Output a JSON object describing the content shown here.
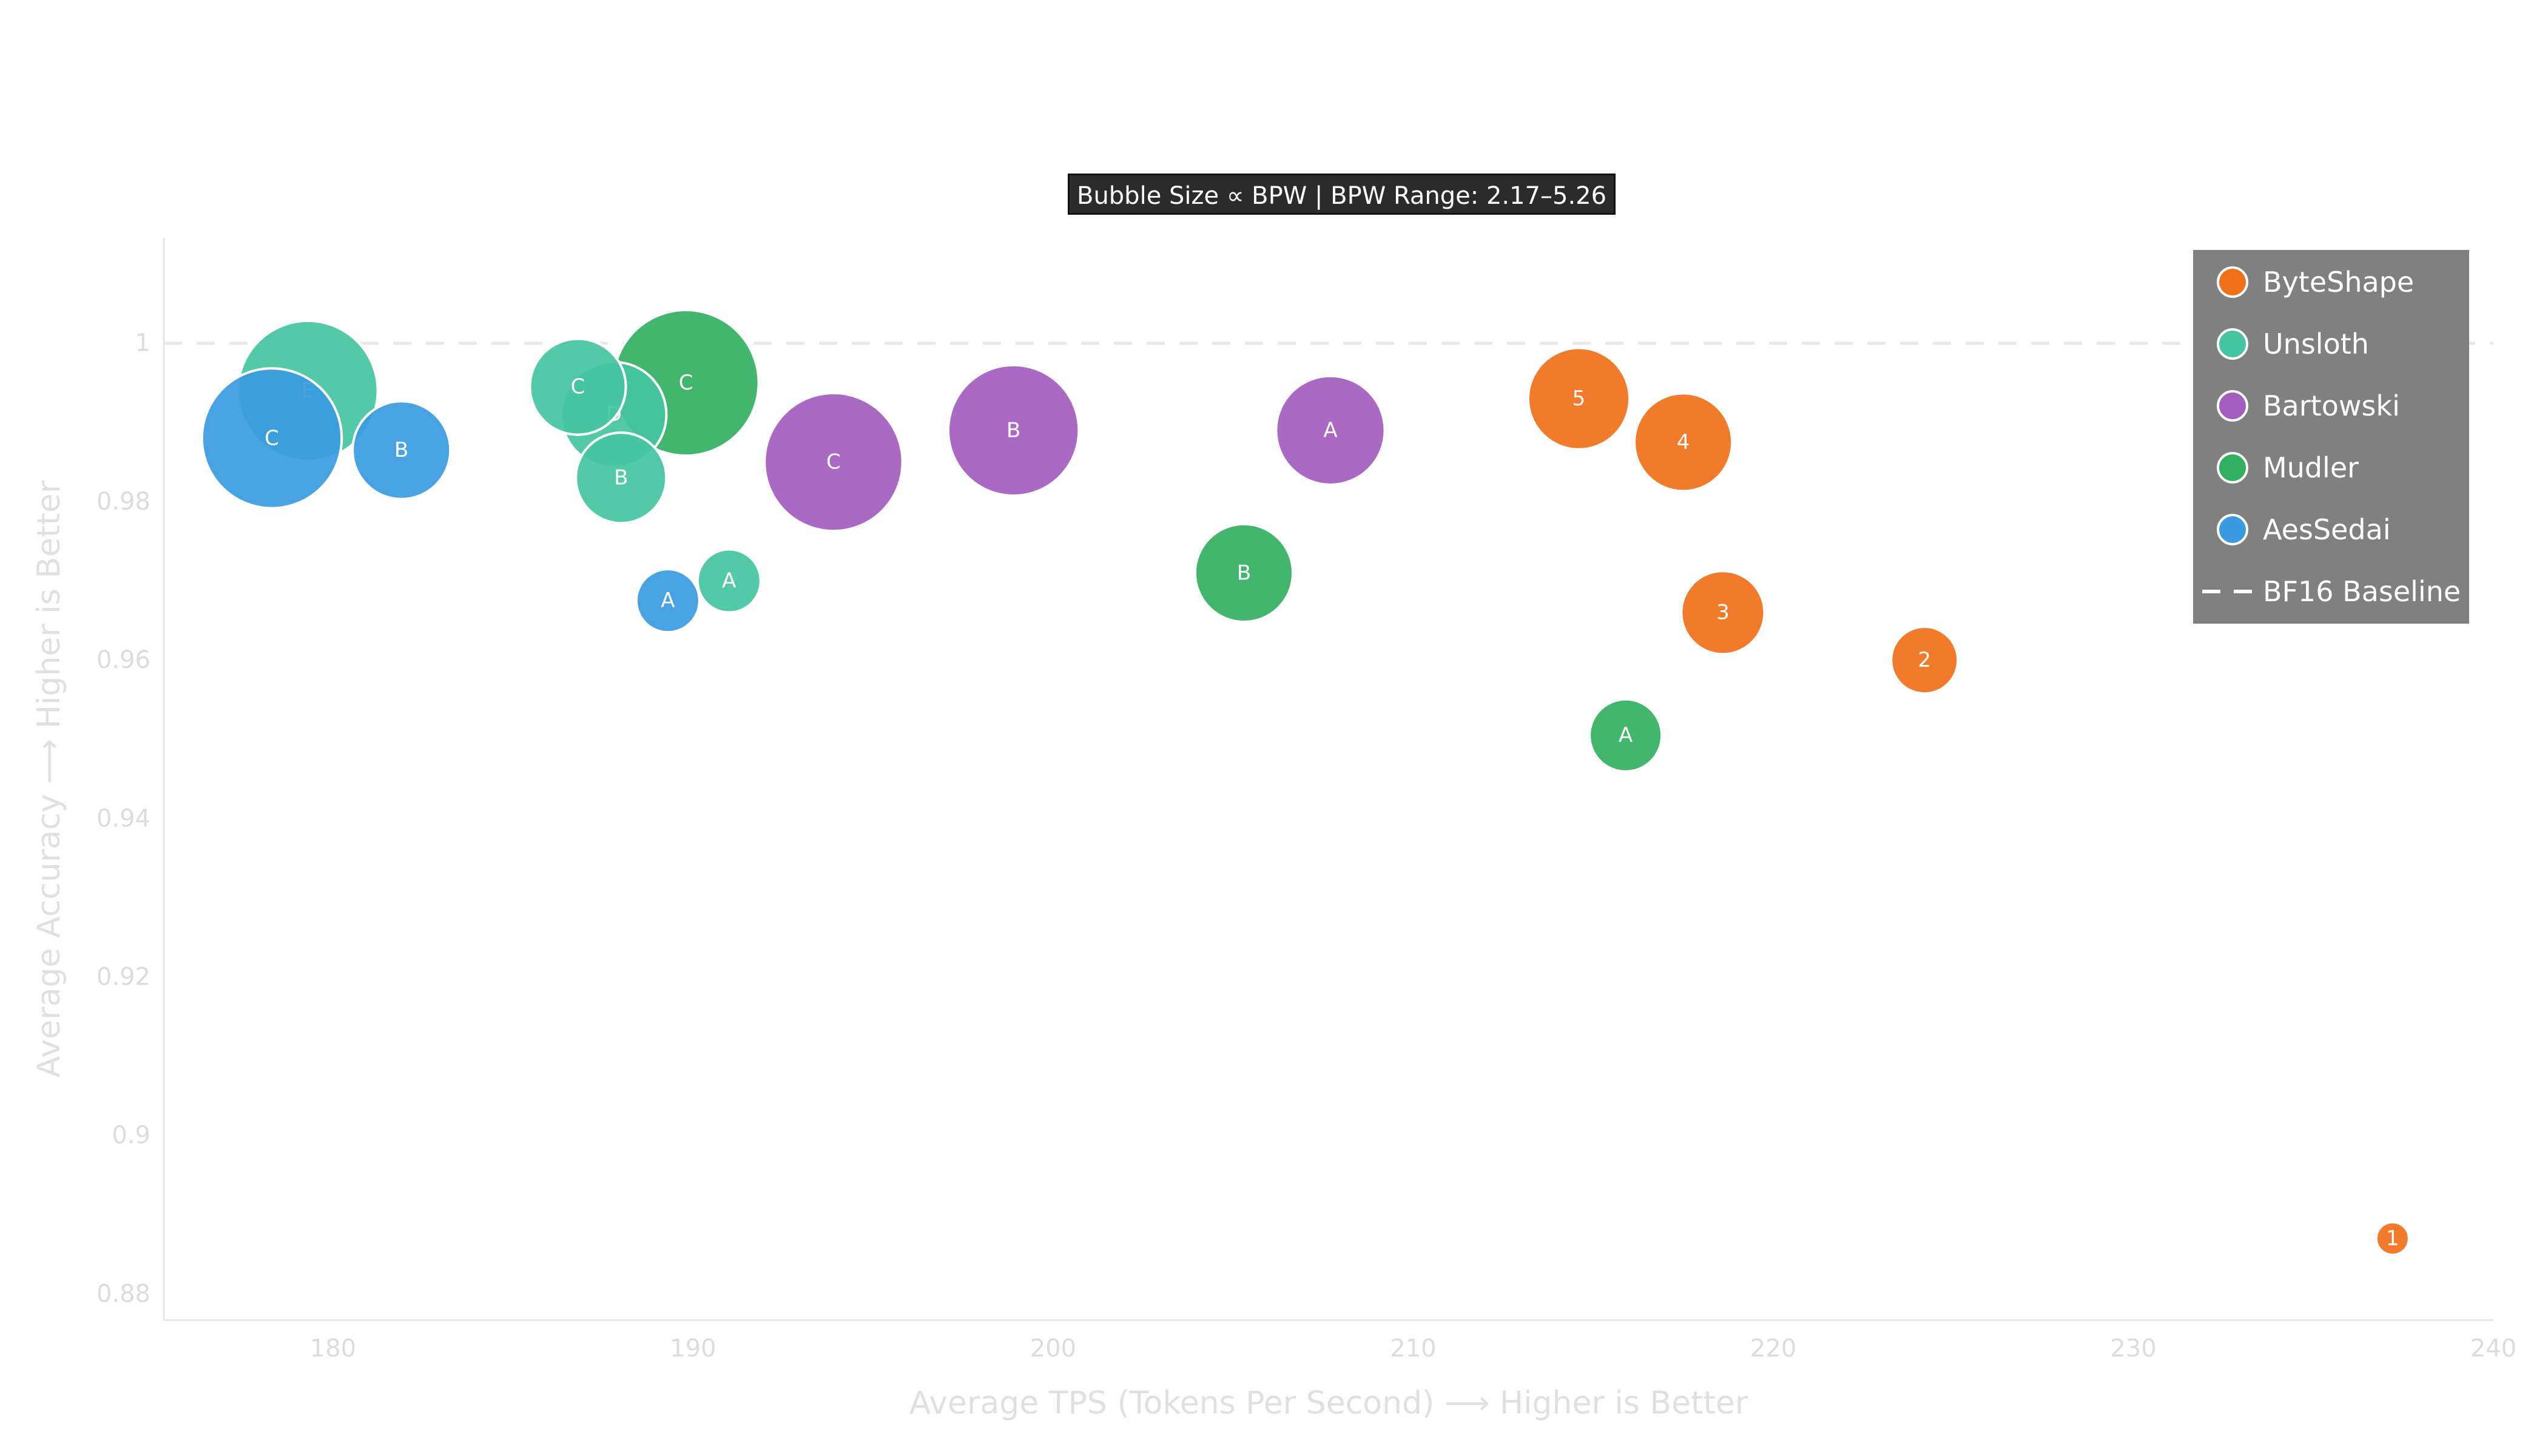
{
  "info_box": "Bubble Size ∝ BPW | BPW Range: 2.17–5.26",
  "chart_data": {
    "type": "scatter",
    "subtype": "bubble",
    "title": "",
    "xlabel": "Average TPS (Tokens Per Second) ⟶ Higher is Better",
    "ylabel": "Average Accuracy ⟶ Higher is Better",
    "xlim": [
      175.3,
      240
    ],
    "ylim": [
      0.8767,
      1.0133
    ],
    "xticks": [
      180,
      190,
      200,
      210,
      220,
      230,
      240
    ],
    "yticks": [
      0.88,
      0.9,
      0.92,
      0.94,
      0.96,
      0.98,
      1
    ],
    "ytick_labels": [
      "0.88",
      "0.9",
      "0.92",
      "0.94",
      "0.96",
      "0.98",
      "1"
    ],
    "grid": false,
    "legend_position": "top-right",
    "baseline": {
      "name": "BF16 Baseline",
      "y": 1,
      "color": "#e8e8e8"
    },
    "series": [
      {
        "name": "ByteShape",
        "color": "#f07019",
        "points": [
          {
            "label": "1",
            "x": 237.2,
            "y": 0.887,
            "bpw": 2.17
          },
          {
            "label": "2",
            "x": 224.2,
            "y": 0.96,
            "bpw": 3.1
          },
          {
            "label": "3",
            "x": 218.6,
            "y": 0.966,
            "bpw": 3.55
          },
          {
            "label": "4",
            "x": 217.5,
            "y": 0.9875,
            "bpw": 3.95
          },
          {
            "label": "5",
            "x": 214.6,
            "y": 0.993,
            "bpw": 4.05
          }
        ]
      },
      {
        "name": "Unsloth",
        "color": "#45c4a0",
        "points": [
          {
            "label": "A",
            "x": 191.0,
            "y": 0.97,
            "bpw": 3.0
          },
          {
            "label": "B",
            "x": 188.0,
            "y": 0.983,
            "bpw": 3.75
          },
          {
            "label": "C",
            "x": 186.8,
            "y": 0.9945,
            "bpw": 3.9
          },
          {
            "label": "D",
            "x": 187.8,
            "y": 0.991,
            "bpw": 4.15
          },
          {
            "label": "E",
            "x": 179.3,
            "y": 0.994,
            "bpw": 5.1
          }
        ]
      },
      {
        "name": "Bartowski",
        "color": "#a35dbf",
        "points": [
          {
            "label": "A",
            "x": 207.7,
            "y": 0.989,
            "bpw": 4.25
          },
          {
            "label": "B",
            "x": 198.9,
            "y": 0.989,
            "bpw": 4.85
          },
          {
            "label": "C",
            "x": 193.9,
            "y": 0.985,
            "bpw": 5.05
          }
        ]
      },
      {
        "name": "Mudler",
        "color": "#32b060",
        "points": [
          {
            "label": "A",
            "x": 215.9,
            "y": 0.9505,
            "bpw": 3.25
          },
          {
            "label": "B",
            "x": 205.3,
            "y": 0.971,
            "bpw": 3.95
          },
          {
            "label": "C",
            "x": 189.8,
            "y": 0.995,
            "bpw": 5.26
          }
        ]
      },
      {
        "name": "AesSedai",
        "color": "#3a9be0",
        "points": [
          {
            "label": "A",
            "x": 189.3,
            "y": 0.9675,
            "bpw": 3.0
          },
          {
            "label": "B",
            "x": 181.9,
            "y": 0.9865,
            "bpw": 3.95
          },
          {
            "label": "C",
            "x": 178.3,
            "y": 0.988,
            "bpw": 5.1
          }
        ]
      }
    ]
  }
}
